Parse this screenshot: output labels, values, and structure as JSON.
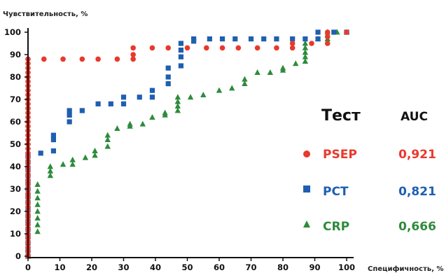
{
  "chart_data": {
    "type": "scatter",
    "ylabel": "Чувствительность, %",
    "xlabel": "Специфичность, %",
    "xlim": [
      0,
      100
    ],
    "ylim": [
      0,
      100
    ],
    "x_ticks": [
      "0",
      "10",
      "20",
      "30",
      "40",
      "50",
      "60",
      "70",
      "80",
      "90",
      "100"
    ],
    "y_ticks": [
      "0",
      "10",
      "20",
      "30",
      "40",
      "50",
      "60",
      "70",
      "80",
      "90",
      "100"
    ],
    "grid": false,
    "legend": {
      "placement": "right",
      "header_test": "Тест",
      "header_auc": "AUC",
      "entries": [
        {
          "series": "PSEP",
          "auc": "0,921"
        },
        {
          "series": "PCT",
          "auc": "0,821"
        },
        {
          "series": "CRP",
          "auc": "0,666"
        }
      ]
    },
    "series": [
      {
        "name": "PSEP",
        "color": "#e8392c",
        "marker": "circle",
        "points": [
          [
            0,
            0
          ],
          [
            0,
            2
          ],
          [
            0,
            4
          ],
          [
            0,
            6
          ],
          [
            0,
            8
          ],
          [
            0,
            10
          ],
          [
            0,
            12
          ],
          [
            0,
            14
          ],
          [
            0,
            16
          ],
          [
            0,
            18
          ],
          [
            0,
            20
          ],
          [
            0,
            22
          ],
          [
            0,
            24
          ],
          [
            0,
            26
          ],
          [
            0,
            28
          ],
          [
            0,
            30
          ],
          [
            0,
            32
          ],
          [
            0,
            34
          ],
          [
            0,
            36
          ],
          [
            0,
            38
          ],
          [
            0,
            40
          ],
          [
            0,
            42
          ],
          [
            0,
            44
          ],
          [
            0,
            46
          ],
          [
            0,
            48
          ],
          [
            0,
            50
          ],
          [
            0,
            52
          ],
          [
            0,
            54
          ],
          [
            0,
            56
          ],
          [
            0,
            58
          ],
          [
            0,
            60
          ],
          [
            0,
            62
          ],
          [
            0,
            64
          ],
          [
            0,
            66
          ],
          [
            0,
            68
          ],
          [
            0,
            70
          ],
          [
            0,
            72
          ],
          [
            0,
            74
          ],
          [
            0,
            76
          ],
          [
            0,
            78
          ],
          [
            0,
            80
          ],
          [
            0,
            82
          ],
          [
            0,
            84
          ],
          [
            0,
            86
          ],
          [
            0,
            88
          ],
          [
            5,
            88
          ],
          [
            11,
            88
          ],
          [
            17,
            88
          ],
          [
            22,
            88
          ],
          [
            28,
            88
          ],
          [
            33,
            88
          ],
          [
            33,
            90
          ],
          [
            33,
            93
          ],
          [
            39,
            93
          ],
          [
            44,
            93
          ],
          [
            50,
            93
          ],
          [
            56,
            93
          ],
          [
            61,
            93
          ],
          [
            66,
            93
          ],
          [
            72,
            93
          ],
          [
            78,
            93
          ],
          [
            83,
            93
          ],
          [
            83,
            95
          ],
          [
            89,
            95
          ],
          [
            94,
            95
          ],
          [
            94,
            98
          ],
          [
            94,
            100
          ],
          [
            100,
            100
          ]
        ]
      },
      {
        "name": "PCT",
        "color": "#1f5fb0",
        "marker": "square",
        "points": [
          [
            0,
            0
          ],
          [
            0,
            3
          ],
          [
            0,
            6
          ],
          [
            0,
            9
          ],
          [
            0,
            12
          ],
          [
            0,
            15
          ],
          [
            0,
            18
          ],
          [
            0,
            21
          ],
          [
            0,
            24
          ],
          [
            0,
            27
          ],
          [
            0,
            30
          ],
          [
            0,
            33
          ],
          [
            0,
            36
          ],
          [
            0,
            39
          ],
          [
            0,
            42
          ],
          [
            0,
            45
          ],
          [
            4,
            46
          ],
          [
            8,
            47
          ],
          [
            8,
            52
          ],
          [
            8,
            54
          ],
          [
            13,
            60
          ],
          [
            13,
            63
          ],
          [
            13,
            65
          ],
          [
            17,
            65
          ],
          [
            22,
            68
          ],
          [
            26,
            68
          ],
          [
            30,
            68
          ],
          [
            30,
            71
          ],
          [
            35,
            71
          ],
          [
            39,
            71
          ],
          [
            39,
            74
          ],
          [
            44,
            77
          ],
          [
            44,
            80
          ],
          [
            44,
            84
          ],
          [
            48,
            85
          ],
          [
            48,
            89
          ],
          [
            48,
            92
          ],
          [
            48,
            95
          ],
          [
            52,
            96
          ],
          [
            52,
            97
          ],
          [
            57,
            97
          ],
          [
            61,
            97
          ],
          [
            65,
            97
          ],
          [
            70,
            97
          ],
          [
            74,
            97
          ],
          [
            78,
            97
          ],
          [
            83,
            97
          ],
          [
            87,
            97
          ],
          [
            91,
            97
          ],
          [
            91,
            100
          ],
          [
            96,
            100
          ],
          [
            100,
            100
          ]
        ]
      },
      {
        "name": "CRP",
        "color": "#2e8b3c",
        "marker": "triangle",
        "points": [
          [
            0,
            0
          ],
          [
            0,
            3
          ],
          [
            0,
            6
          ],
          [
            0,
            9
          ],
          [
            3,
            11
          ],
          [
            3,
            14
          ],
          [
            3,
            17
          ],
          [
            3,
            20
          ],
          [
            3,
            23
          ],
          [
            3,
            26
          ],
          [
            3,
            29
          ],
          [
            3,
            32
          ],
          [
            7,
            36
          ],
          [
            7,
            38
          ],
          [
            7,
            40
          ],
          [
            11,
            41
          ],
          [
            14,
            41
          ],
          [
            14,
            43
          ],
          [
            18,
            44
          ],
          [
            21,
            45
          ],
          [
            21,
            47
          ],
          [
            25,
            49
          ],
          [
            25,
            52
          ],
          [
            25,
            54
          ],
          [
            28,
            57
          ],
          [
            32,
            58
          ],
          [
            32,
            59
          ],
          [
            36,
            59
          ],
          [
            39,
            62
          ],
          [
            43,
            63
          ],
          [
            43,
            64
          ],
          [
            47,
            65
          ],
          [
            47,
            67
          ],
          [
            47,
            69
          ],
          [
            47,
            71
          ],
          [
            51,
            71
          ],
          [
            55,
            72
          ],
          [
            60,
            74
          ],
          [
            64,
            75
          ],
          [
            68,
            77
          ],
          [
            68,
            79
          ],
          [
            72,
            82
          ],
          [
            76,
            82
          ],
          [
            80,
            83
          ],
          [
            80,
            84
          ],
          [
            84,
            86
          ],
          [
            87,
            87
          ],
          [
            87,
            89
          ],
          [
            87,
            91
          ],
          [
            87,
            93
          ],
          [
            87,
            95
          ],
          [
            91,
            97
          ],
          [
            94,
            97
          ],
          [
            94,
            100
          ],
          [
            97,
            100
          ],
          [
            100,
            100
          ]
        ]
      }
    ]
  }
}
